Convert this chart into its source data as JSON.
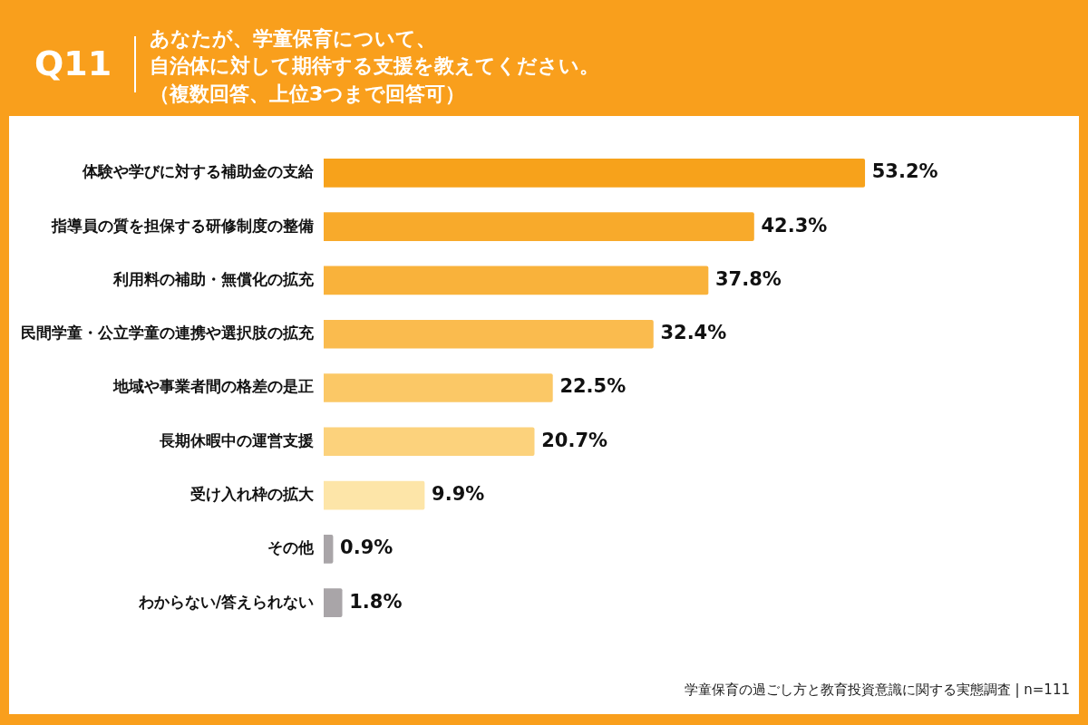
{
  "chart_data": {
    "type": "bar",
    "orientation": "horizontal",
    "title": "あなたが、学童保育について、",
    "subtitle": "自治体に対して期待する支援を教えてください。",
    "annotations": [
      "Q11",
      "（複数回答、上位3つまで回答可）",
      "学童保育の過ごし方と教育投資意識に関する実態調査 | n=111"
    ],
    "categories": [
      "体験や学びに対する補助金の支給",
      "指導員の質を担保する研修制度の整備",
      "利用料の補助・無償化の拡充",
      "民間学童・公立学童の連携や選択肢の拡充",
      "地域や事業者間の格差の是正",
      "長期休暇中の運営支援",
      "受け入れ枠の拡大",
      "その他",
      "わからない/答えられない"
    ],
    "values": [
      53.2,
      42.3,
      37.8,
      32.4,
      22.5,
      20.7,
      9.9,
      0.9,
      1.8
    ],
    "colors": [
      "#f7a21b",
      "#f8aa2b",
      "#f9b23b",
      "#fabb4e",
      "#fbc866",
      "#fcd27c",
      "#fde5a8",
      "#a9a5a8",
      "#a9a5a8"
    ],
    "value_labels": [
      "53.2%",
      "42.3%",
      "37.8%",
      "32.4%",
      "22.5%",
      "20.7%",
      "9.9%",
      "0.9%",
      "1.8%"
    ],
    "legend": false
  }
}
